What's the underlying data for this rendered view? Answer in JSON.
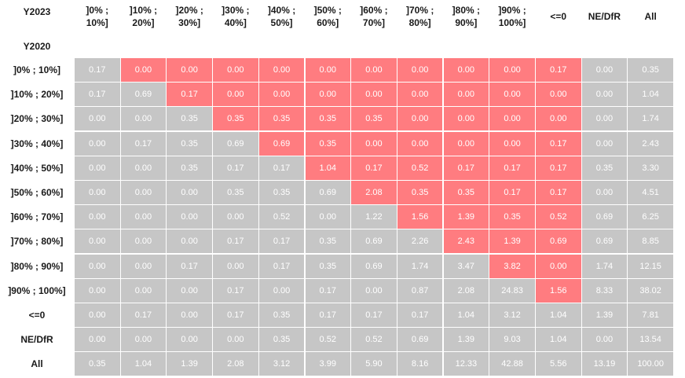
{
  "chart_data": {
    "type": "table",
    "corner_top": "Y2023",
    "corner_bottom": "Y2020",
    "columns": [
      {
        "line1": "]0% ;",
        "line2": "10%]"
      },
      {
        "line1": "]10% ;",
        "line2": "20%]"
      },
      {
        "line1": "]20% ;",
        "line2": "30%]"
      },
      {
        "line1": "]30% ;",
        "line2": "40%]"
      },
      {
        "line1": "]40% ;",
        "line2": "50%]"
      },
      {
        "line1": "]50% ;",
        "line2": "60%]"
      },
      {
        "line1": "]60% ;",
        "line2": "70%]"
      },
      {
        "line1": "]70% ;",
        "line2": "80%]"
      },
      {
        "line1": "]80% ;",
        "line2": "90%]"
      },
      {
        "line1": "]90% ;",
        "line2": "100%]"
      },
      {
        "line1": "<=0",
        "line2": ""
      },
      {
        "line1": "NE/DfR",
        "line2": ""
      },
      {
        "line1": "All",
        "line2": ""
      }
    ],
    "rows": [
      {
        "label": "]0% ; 10%]",
        "values": [
          "0.17",
          "0.00",
          "0.00",
          "0.00",
          "0.00",
          "0.00",
          "0.00",
          "0.00",
          "0.00",
          "0.00",
          "0.17",
          "0.00",
          "0.35"
        ],
        "red_from": 1,
        "red_to": 10
      },
      {
        "label": "]10% ; 20%]",
        "values": [
          "0.17",
          "0.69",
          "0.17",
          "0.00",
          "0.00",
          "0.00",
          "0.00",
          "0.00",
          "0.00",
          "0.00",
          "0.00",
          "0.00",
          "1.04"
        ],
        "red_from": 2,
        "red_to": 10
      },
      {
        "label": "]20% ; 30%]",
        "values": [
          "0.00",
          "0.00",
          "0.35",
          "0.35",
          "0.35",
          "0.35",
          "0.35",
          "0.00",
          "0.00",
          "0.00",
          "0.00",
          "0.00",
          "1.74"
        ],
        "red_from": 3,
        "red_to": 10
      },
      {
        "label": "]30% ; 40%]",
        "values": [
          "0.00",
          "0.17",
          "0.35",
          "0.69",
          "0.69",
          "0.35",
          "0.00",
          "0.00",
          "0.00",
          "0.00",
          "0.17",
          "0.00",
          "2.43"
        ],
        "red_from": 4,
        "red_to": 10
      },
      {
        "label": "]40% ; 50%]",
        "values": [
          "0.00",
          "0.00",
          "0.35",
          "0.17",
          "0.17",
          "1.04",
          "0.17",
          "0.52",
          "0.17",
          "0.17",
          "0.17",
          "0.35",
          "3.30"
        ],
        "red_from": 5,
        "red_to": 10
      },
      {
        "label": "]50% ; 60%]",
        "values": [
          "0.00",
          "0.00",
          "0.00",
          "0.35",
          "0.35",
          "0.69",
          "2.08",
          "0.35",
          "0.35",
          "0.17",
          "0.17",
          "0.00",
          "4.51"
        ],
        "red_from": 6,
        "red_to": 10
      },
      {
        "label": "]60% ; 70%]",
        "values": [
          "0.00",
          "0.00",
          "0.00",
          "0.00",
          "0.52",
          "0.00",
          "1.22",
          "1.56",
          "1.39",
          "0.35",
          "0.52",
          "0.69",
          "6.25"
        ],
        "red_from": 7,
        "red_to": 10
      },
      {
        "label": "]70% ; 80%]",
        "values": [
          "0.00",
          "0.00",
          "0.00",
          "0.17",
          "0.17",
          "0.35",
          "0.69",
          "2.26",
          "2.43",
          "1.39",
          "0.69",
          "0.69",
          "8.85"
        ],
        "red_from": 8,
        "red_to": 10
      },
      {
        "label": "]80% ; 90%]",
        "values": [
          "0.00",
          "0.00",
          "0.17",
          "0.00",
          "0.17",
          "0.35",
          "0.69",
          "1.74",
          "3.47",
          "3.82",
          "0.00",
          "1.74",
          "12.15"
        ],
        "red_from": 9,
        "red_to": 10
      },
      {
        "label": "]90% ; 100%]",
        "values": [
          "0.00",
          "0.00",
          "0.00",
          "0.17",
          "0.00",
          "0.17",
          "0.00",
          "0.87",
          "2.08",
          "24.83",
          "1.56",
          "8.33",
          "38.02"
        ],
        "red_from": 10,
        "red_to": 10
      },
      {
        "label": "<=0",
        "values": [
          "0.00",
          "0.17",
          "0.00",
          "0.17",
          "0.35",
          "0.17",
          "0.17",
          "0.17",
          "1.04",
          "3.12",
          "1.04",
          "1.39",
          "7.81"
        ],
        "red_from": -1,
        "red_to": -1
      },
      {
        "label": "NE/DfR",
        "values": [
          "0.00",
          "0.00",
          "0.00",
          "0.00",
          "0.35",
          "0.52",
          "0.52",
          "0.69",
          "1.39",
          "9.03",
          "1.04",
          "0.00",
          "13.54"
        ],
        "red_from": -1,
        "red_to": -1
      },
      {
        "label": "All",
        "values": [
          "0.35",
          "1.04",
          "1.39",
          "2.08",
          "3.12",
          "3.99",
          "5.90",
          "8.16",
          "12.33",
          "42.88",
          "5.56",
          "13.19",
          "100.00"
        ],
        "red_from": -1,
        "red_to": -1
      }
    ],
    "colors": {
      "neutral": "#c6c6c6",
      "highlight": "#ff7c80",
      "cell_text": "#ffffff"
    }
  }
}
